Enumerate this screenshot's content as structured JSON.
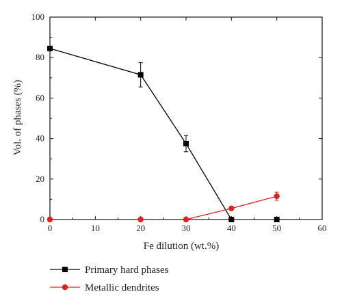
{
  "chart_data": {
    "type": "line",
    "xlabel": "Fe dilution (wt.%)",
    "ylabel": "Vol. of phases (%)",
    "xlim": [
      0,
      60
    ],
    "ylim": [
      0,
      100
    ],
    "xticks": [
      0,
      10,
      20,
      30,
      40,
      50,
      60
    ],
    "yticks": [
      0,
      20,
      40,
      60,
      80,
      100
    ],
    "grid": false,
    "legend_position": "bottom-left, below plot",
    "series": [
      {
        "name": "Primary hard phases",
        "color": "#000000",
        "marker": "square",
        "x": [
          0,
          20,
          30,
          40,
          50
        ],
        "y": [
          84.5,
          71.5,
          37.5,
          0,
          0
        ],
        "error": [
          0,
          6,
          4,
          0,
          0
        ],
        "connect_points": 4
      },
      {
        "name": "Metallic dendrites",
        "color": "#e3201b",
        "marker": "circle",
        "x": [
          0,
          20,
          30,
          40,
          50
        ],
        "y": [
          0,
          0,
          0,
          5.5,
          11.5
        ],
        "error": [
          0,
          0,
          0,
          0,
          2
        ],
        "connect_from": 2
      }
    ]
  }
}
